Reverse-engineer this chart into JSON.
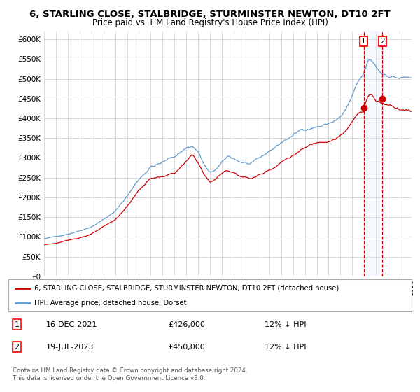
{
  "title": "6, STARLING CLOSE, STALBRIDGE, STURMINSTER NEWTON, DT10 2FT",
  "subtitle": "Price paid vs. HM Land Registry's House Price Index (HPI)",
  "ylabel_ticks": [
    "£0",
    "£50K",
    "£100K",
    "£150K",
    "£200K",
    "£250K",
    "£300K",
    "£350K",
    "£400K",
    "£450K",
    "£500K",
    "£550K",
    "£600K"
  ],
  "ylim": [
    0,
    620000
  ],
  "hpi_color": "#6699cc",
  "price_color": "#cc0000",
  "shade_color": "#ddeeff",
  "grid_color": "#cccccc",
  "background_color": "#ffffff",
  "legend_label_red": "6, STARLING CLOSE, STALBRIDGE, STURMINSTER NEWTON, DT10 2FT (detached house)",
  "legend_label_blue": "HPI: Average price, detached house, Dorset",
  "annotation1_date": "16-DEC-2021",
  "annotation1_price": "£426,000",
  "annotation1_hpi": "12% ↓ HPI",
  "annotation2_date": "19-JUL-2023",
  "annotation2_price": "£450,000",
  "annotation2_hpi": "12% ↓ HPI",
  "footer": "Contains HM Land Registry data © Crown copyright and database right 2024.\nThis data is licensed under the Open Government Licence v3.0.",
  "sale1_x": 2021.96,
  "sale1_y": 426000,
  "sale2_x": 2023.54,
  "sale2_y": 450000,
  "xmin": 1995,
  "xmax": 2026,
  "hpi_start_year": 1995.0,
  "hpi_base_value": 95000,
  "red_base_value": 80000
}
